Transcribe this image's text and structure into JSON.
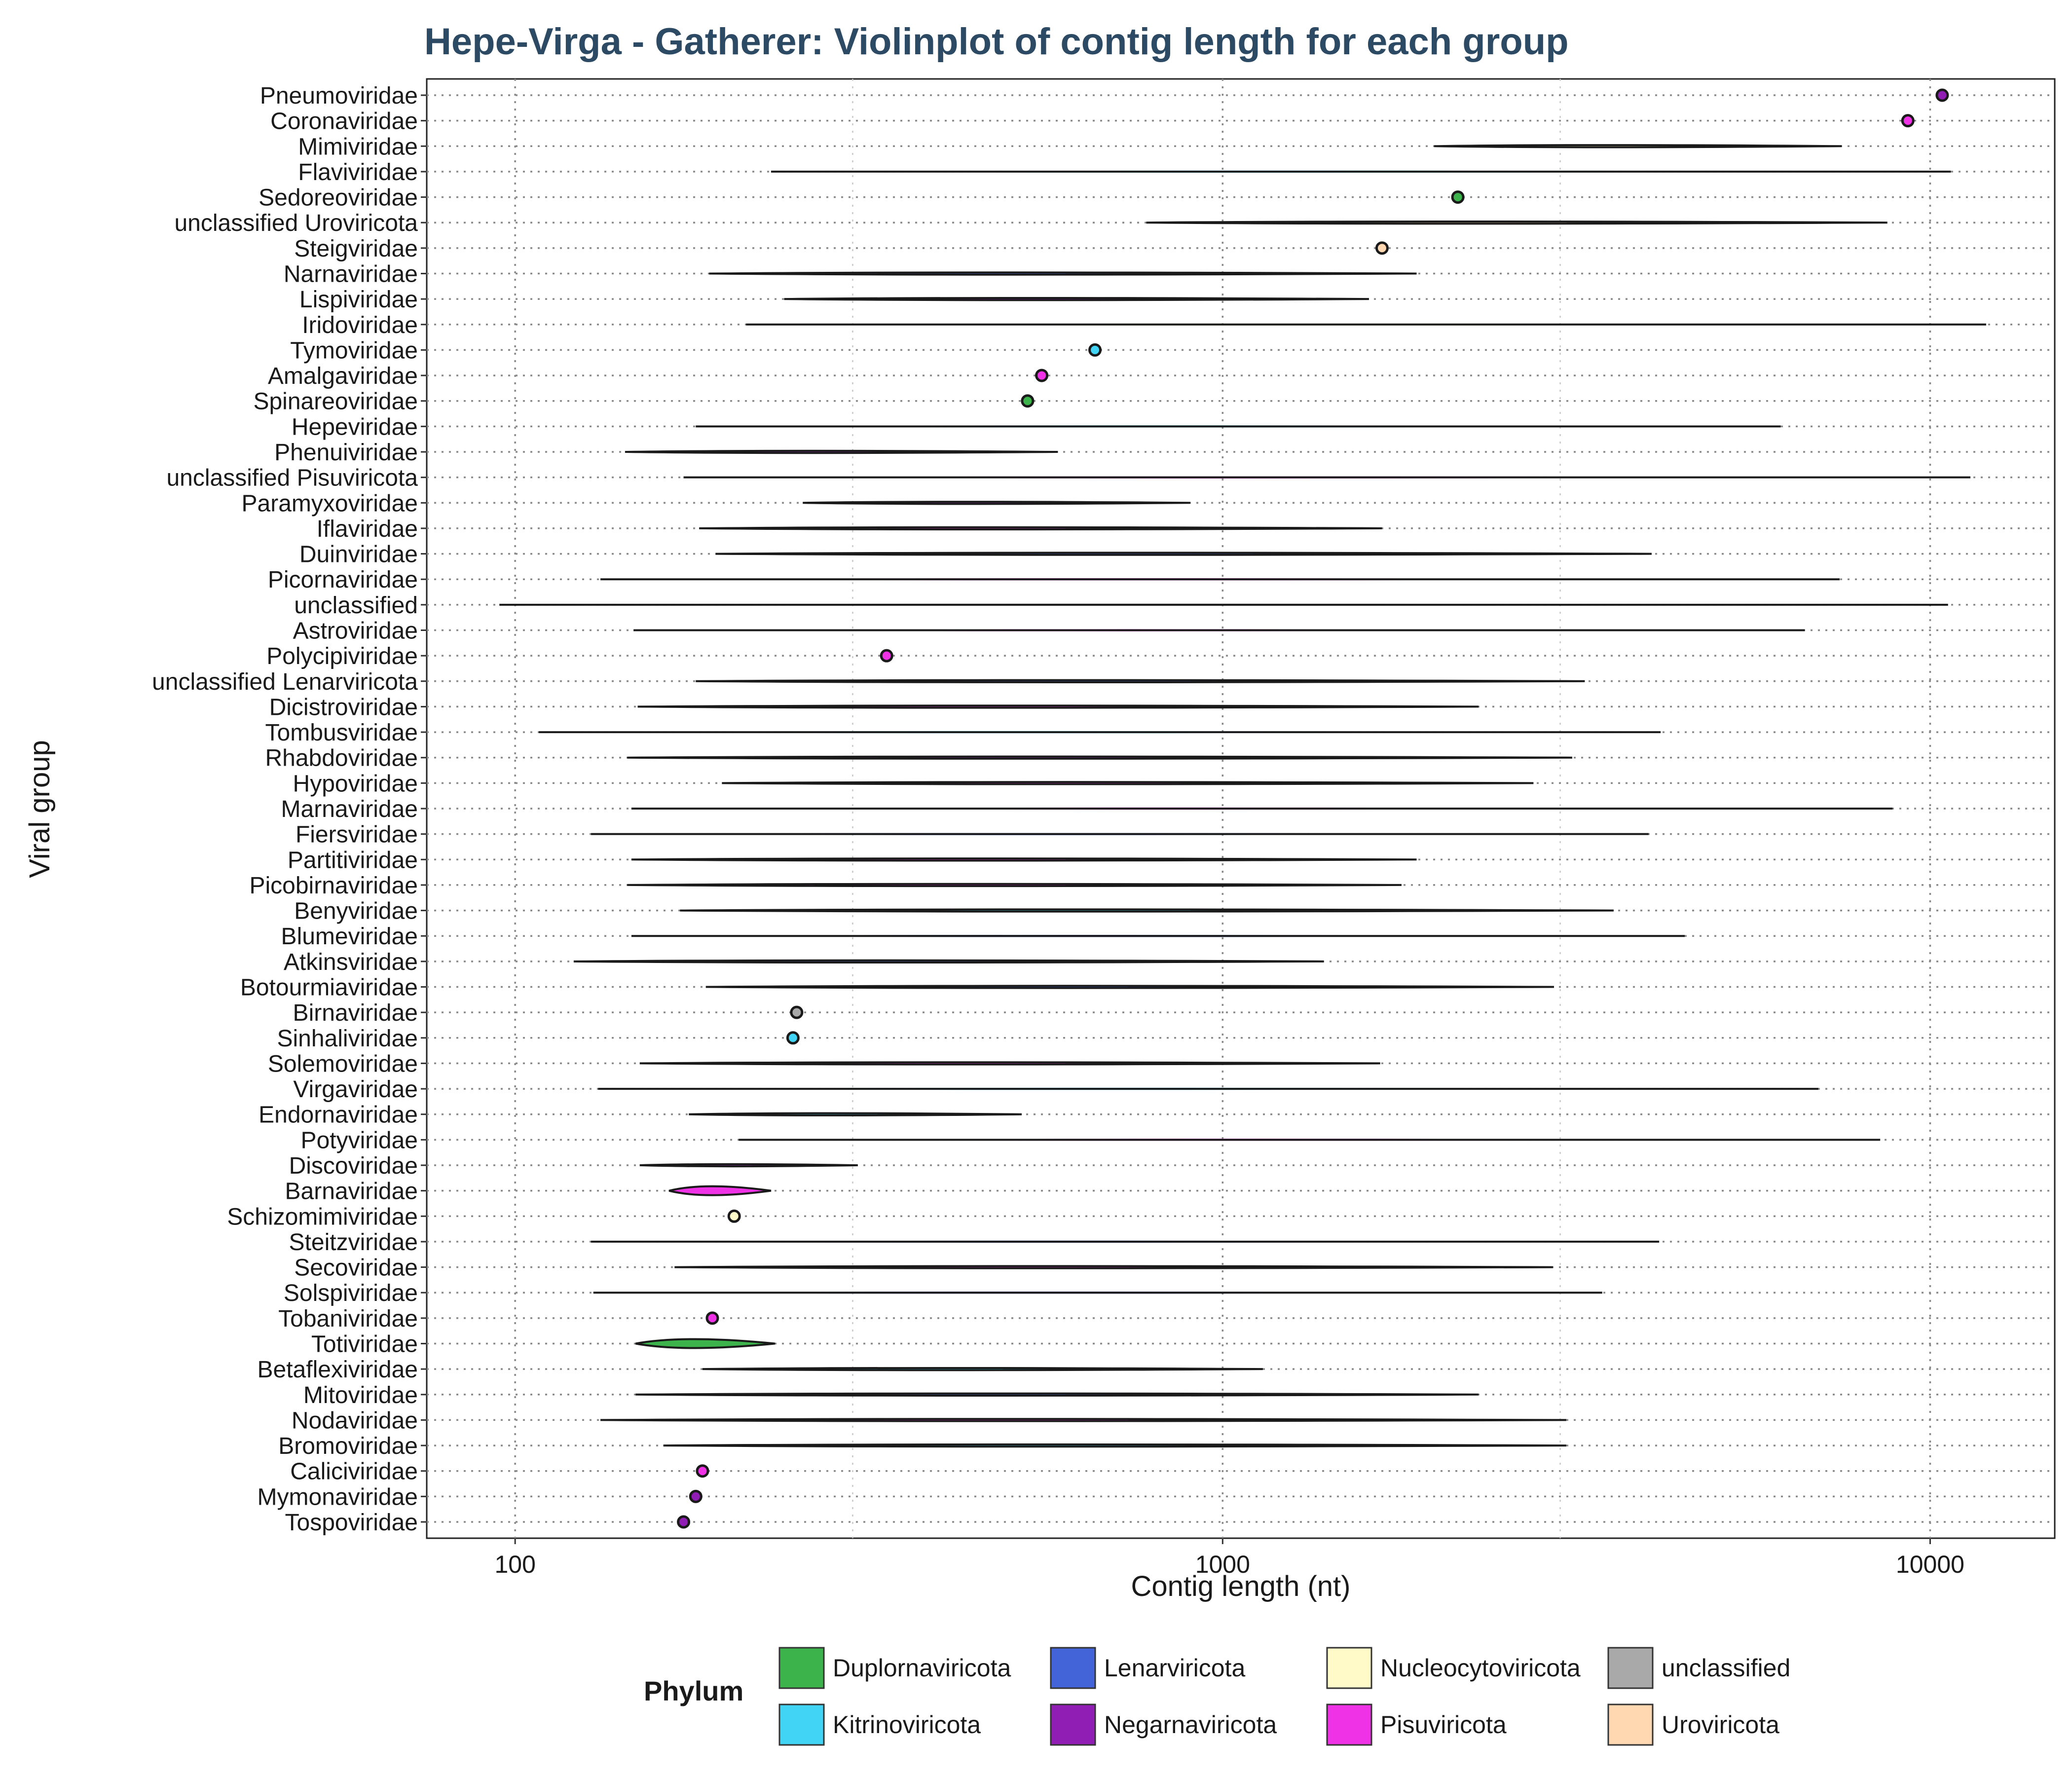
{
  "chart_data": {
    "type": "violin",
    "title": "Hepe-Virga - Gatherer: Violinplot of contig length for each group",
    "xlabel": "Contig length (nt)",
    "ylabel": "Viral group",
    "x_scale": "log10",
    "xlim": [
      75,
      15000
    ],
    "x_ticks": [
      100,
      1000,
      10000
    ],
    "x_tick_labels": [
      "100",
      "1000",
      "10000"
    ],
    "grid": true,
    "legend": {
      "title": "Phylum",
      "position": "bottom",
      "entries": [
        {
          "name": "Duplornaviricota",
          "color": "#3cb44b"
        },
        {
          "name": "Kitrinoviricota",
          "color": "#42d4f4"
        },
        {
          "name": "Lenarviricota",
          "color": "#4363d8"
        },
        {
          "name": "Negarnaviricota",
          "color": "#911eb4"
        },
        {
          "name": "Nucleocytoviricota",
          "color": "#fffac8"
        },
        {
          "name": "Pisuviricota",
          "color": "#f032e6"
        },
        {
          "name": "unclassified",
          "color": "#a9a9a9"
        },
        {
          "name": "Uroviricota",
          "color": "#ffd8b1"
        }
      ]
    },
    "groups": [
      {
        "name": "Pneumoviridae",
        "phylum": "Negarnaviricota",
        "min": 10400,
        "max": 10400
      },
      {
        "name": "Coronaviridae",
        "phylum": "Pisuviricota",
        "min": 9300,
        "max": 9300
      },
      {
        "name": "Mimiviridae",
        "phylum": "Nucleocytoviricota",
        "min": 1990,
        "max": 7500
      },
      {
        "name": "Flaviviridae",
        "phylum": "Kitrinoviricota",
        "min": 230,
        "max": 10700
      },
      {
        "name": "Sedoreoviridae",
        "phylum": "Duplornaviricota",
        "min": 2150,
        "max": 2150
      },
      {
        "name": "unclassified Uroviricota",
        "phylum": "Uroviricota",
        "min": 780,
        "max": 8700
      },
      {
        "name": "Steigviridae",
        "phylum": "Uroviricota",
        "min": 1680,
        "max": 1680
      },
      {
        "name": "Narnaviridae",
        "phylum": "Lenarviricota",
        "min": 188,
        "max": 1880
      },
      {
        "name": "Lispiviridae",
        "phylum": "Negarnaviricota",
        "min": 240,
        "max": 1610
      },
      {
        "name": "Iridoviridae",
        "phylum": "Nucleocytoviricota",
        "min": 212,
        "max": 12000
      },
      {
        "name": "Tymoviridae",
        "phylum": "Kitrinoviricota",
        "min": 660,
        "max": 660
      },
      {
        "name": "Amalgaviridae",
        "phylum": "Pisuviricota",
        "min": 555,
        "max": 555
      },
      {
        "name": "Spinareoviridae",
        "phylum": "Duplornaviricota",
        "min": 530,
        "max": 530
      },
      {
        "name": "Hepeviridae",
        "phylum": "Kitrinoviricota",
        "min": 180,
        "max": 6150
      },
      {
        "name": "Phenuiviridae",
        "phylum": "Negarnaviricota",
        "min": 143,
        "max": 585
      },
      {
        "name": "unclassified Pisuviricota",
        "phylum": "Pisuviricota",
        "min": 173,
        "max": 11400
      },
      {
        "name": "Paramyxoviridae",
        "phylum": "Negarnaviricota",
        "min": 255,
        "max": 900
      },
      {
        "name": "Iflaviridae",
        "phylum": "Pisuviricota",
        "min": 182,
        "max": 1680
      },
      {
        "name": "Duinviridae",
        "phylum": "Lenarviricota",
        "min": 192,
        "max": 4040
      },
      {
        "name": "Picornaviridae",
        "phylum": "Pisuviricota",
        "min": 132,
        "max": 7450
      },
      {
        "name": "unclassified",
        "phylum": "unclassified",
        "min": 95,
        "max": 10600
      },
      {
        "name": "Astroviridae",
        "phylum": "Pisuviricota",
        "min": 147,
        "max": 6650
      },
      {
        "name": "Polycipiviridae",
        "phylum": "Pisuviricota",
        "min": 335,
        "max": 335
      },
      {
        "name": "unclassified Lenarviricota",
        "phylum": "Lenarviricota",
        "min": 180,
        "max": 3250
      },
      {
        "name": "Dicistroviridae",
        "phylum": "Pisuviricota",
        "min": 149,
        "max": 2300
      },
      {
        "name": "Tombusviridae",
        "phylum": "Kitrinoviricota",
        "min": 108,
        "max": 4160
      },
      {
        "name": "Rhabdoviridae",
        "phylum": "Negarnaviricota",
        "min": 144,
        "max": 3120
      },
      {
        "name": "Hypoviridae",
        "phylum": "Pisuviricota",
        "min": 196,
        "max": 2750
      },
      {
        "name": "Marnaviridae",
        "phylum": "Pisuviricota",
        "min": 146,
        "max": 8850
      },
      {
        "name": "Fiersviridae",
        "phylum": "Lenarviricota",
        "min": 128,
        "max": 4000
      },
      {
        "name": "Partitiviridae",
        "phylum": "Pisuviricota",
        "min": 146,
        "max": 1880
      },
      {
        "name": "Picobirnaviridae",
        "phylum": "Pisuviricota",
        "min": 144,
        "max": 1790
      },
      {
        "name": "Benyviridae",
        "phylum": "Kitrinoviricota",
        "min": 171,
        "max": 3570
      },
      {
        "name": "Blumeviridae",
        "phylum": "Lenarviricota",
        "min": 146,
        "max": 4500
      },
      {
        "name": "Atkinsviridae",
        "phylum": "Lenarviricota",
        "min": 121,
        "max": 1390
      },
      {
        "name": "Botourmiaviridae",
        "phylum": "Lenarviricota",
        "min": 186,
        "max": 2940
      },
      {
        "name": "Birnaviridae",
        "phylum": "unclassified",
        "min": 250,
        "max": 250
      },
      {
        "name": "Sinhaliviridae",
        "phylum": "Kitrinoviricota",
        "min": 247,
        "max": 247
      },
      {
        "name": "Solemoviridae",
        "phylum": "Pisuviricota",
        "min": 150,
        "max": 1670
      },
      {
        "name": "Virgaviridae",
        "phylum": "Kitrinoviricota",
        "min": 131,
        "max": 6950
      },
      {
        "name": "Endornaviridae",
        "phylum": "Kitrinoviricota",
        "min": 176,
        "max": 520
      },
      {
        "name": "Potyviridae",
        "phylum": "Pisuviricota",
        "min": 207,
        "max": 8500
      },
      {
        "name": "Discoviridae",
        "phylum": "Negarnaviricota",
        "min": 150,
        "max": 305
      },
      {
        "name": "Barnaviridae",
        "phylum": "Pisuviricota",
        "min": 165,
        "max": 230
      },
      {
        "name": "Schizomimiviridae",
        "phylum": "Nucleocytoviricota",
        "min": 202,
        "max": 206
      },
      {
        "name": "Steitzviridae",
        "phylum": "Lenarviricota",
        "min": 128,
        "max": 4140
      },
      {
        "name": "Secoviridae",
        "phylum": "Pisuviricota",
        "min": 168,
        "max": 2930
      },
      {
        "name": "Solspiviridae",
        "phylum": "Lenarviricota",
        "min": 129,
        "max": 3440
      },
      {
        "name": "Tobaniviridae",
        "phylum": "Pisuviricota",
        "min": 190,
        "max": 190
      },
      {
        "name": "Totiviridae",
        "phylum": "Duplornaviricota",
        "min": 148,
        "max": 233
      },
      {
        "name": "Betaflexiviridae",
        "phylum": "Kitrinoviricota",
        "min": 184,
        "max": 1140
      },
      {
        "name": "Mitoviridae",
        "phylum": "Lenarviricota",
        "min": 148,
        "max": 2300
      },
      {
        "name": "Nodaviridae",
        "phylum": "Pisuviricota",
        "min": 132,
        "max": 3060
      },
      {
        "name": "Bromoviridae",
        "phylum": "Kitrinoviricota",
        "min": 162,
        "max": 3060
      },
      {
        "name": "Caliciviridae",
        "phylum": "Pisuviricota",
        "min": 184,
        "max": 184
      },
      {
        "name": "Mymonaviridae",
        "phylum": "Negarnaviricota",
        "min": 180,
        "max": 180
      },
      {
        "name": "Tospoviridae",
        "phylum": "Negarnaviricota",
        "min": 173,
        "max": 173
      }
    ]
  }
}
